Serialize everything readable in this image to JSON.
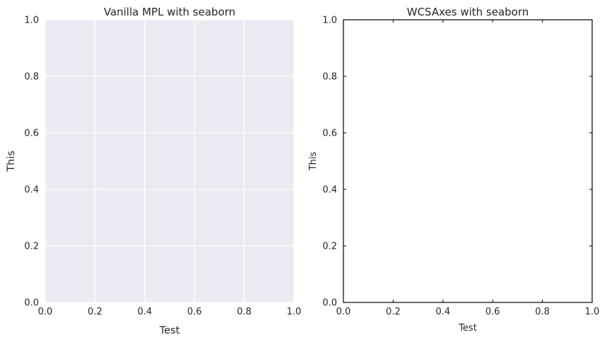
{
  "chart_data": [
    {
      "type": "line",
      "title": "Vanilla MPL with seaborn",
      "xlabel": "Test",
      "ylabel": "This",
      "xlim": [
        0,
        1
      ],
      "ylim": [
        0,
        1
      ],
      "xticks": [
        "0.0",
        "0.2",
        "0.4",
        "0.6",
        "0.8",
        "1.0"
      ],
      "yticks": [
        "0.0",
        "0.2",
        "0.4",
        "0.6",
        "0.8",
        "1.0"
      ],
      "grid": true,
      "series": [],
      "colors": {
        "background": "#EAEAF2",
        "grid": "#FFFFFF",
        "text": "#262626"
      }
    },
    {
      "type": "line",
      "title": "WCSAxes with seaborn",
      "xlabel": "Test",
      "ylabel": "This",
      "xlim": [
        0,
        1
      ],
      "ylim": [
        0,
        1
      ],
      "xticks": [
        "0.0",
        "0.2",
        "0.4",
        "0.6",
        "0.8",
        "1.0"
      ],
      "yticks": [
        "0.0",
        "0.2",
        "0.4",
        "0.6",
        "0.8",
        "1.0"
      ],
      "grid": false,
      "series": [],
      "colors": {
        "background": "#FFFFFF",
        "frame": "#000000",
        "text": "#262626"
      }
    }
  ]
}
